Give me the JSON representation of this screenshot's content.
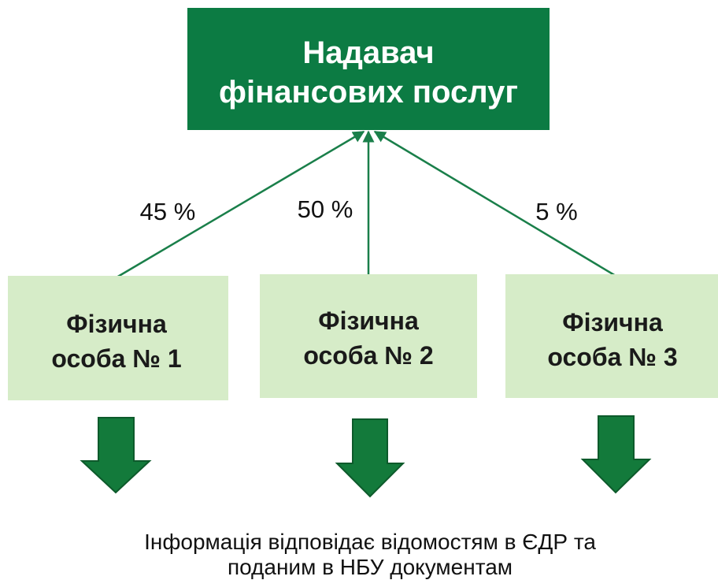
{
  "top_node": {
    "lines": [
      "Надавач",
      "фінансових послуг"
    ]
  },
  "nodes": [
    {
      "lines": [
        "Фізична",
        "особа № 1"
      ],
      "edge_label": "45 %"
    },
    {
      "lines": [
        "Фізична",
        "особа № 2"
      ],
      "edge_label": "50 %"
    },
    {
      "lines": [
        "Фізична",
        "особа № 3"
      ],
      "edge_label": "5 %"
    }
  ],
  "footer": {
    "lines": [
      "Інформація відповідає відомостям в ЄДР та",
      "поданим в НБУ документам"
    ]
  }
}
